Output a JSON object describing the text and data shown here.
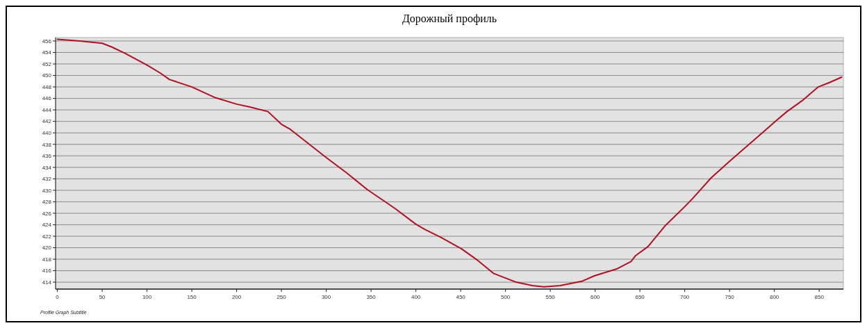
{
  "chart_data": {
    "type": "line",
    "title": "Дорожный профиль",
    "subtitle": "Profile Graph Subtitle",
    "xlim": [
      -2,
      877
    ],
    "ylim": [
      412.8,
      456.6
    ],
    "xticks": [
      0,
      50,
      100,
      150,
      200,
      250,
      300,
      350,
      400,
      450,
      500,
      550,
      600,
      650,
      700,
      750,
      800,
      850
    ],
    "yticks": [
      414,
      416,
      418,
      420,
      422,
      424,
      426,
      428,
      430,
      432,
      434,
      436,
      438,
      440,
      442,
      444,
      446,
      448,
      450,
      452,
      454,
      456
    ],
    "grid": "y",
    "marker": "none",
    "line_style": "solid",
    "series": [
      {
        "color": "#b01020",
        "x": [
          0,
          25,
          50,
          60,
          75,
          100,
          115,
          125,
          150,
          175,
          200,
          215,
          235,
          250,
          260,
          300,
          323,
          346,
          377,
          400,
          410,
          428,
          451,
          469,
          487,
          512,
          530,
          543,
          561,
          586,
          599,
          624,
          640,
          645,
          659,
          678,
          699,
          709,
          729,
          749,
          765,
          788,
          801,
          814,
          831,
          849,
          862,
          875
        ],
        "values": [
          456.3,
          456.0,
          455.6,
          455.0,
          453.9,
          451.8,
          450.4,
          449.3,
          448.0,
          446.2,
          445.0,
          444.5,
          443.7,
          441.5,
          440.6,
          435.7,
          433.0,
          430.1,
          426.8,
          424.1,
          423.2,
          421.8,
          419.8,
          417.8,
          415.5,
          414.0,
          413.4,
          413.2,
          413.4,
          414.2,
          415.1,
          416.3,
          417.6,
          418.6,
          420.2,
          423.8,
          427.0,
          428.6,
          432.1,
          434.9,
          437.1,
          440.2,
          442.0,
          443.7,
          445.6,
          448.0,
          448.8,
          449.7
        ]
      }
    ]
  }
}
